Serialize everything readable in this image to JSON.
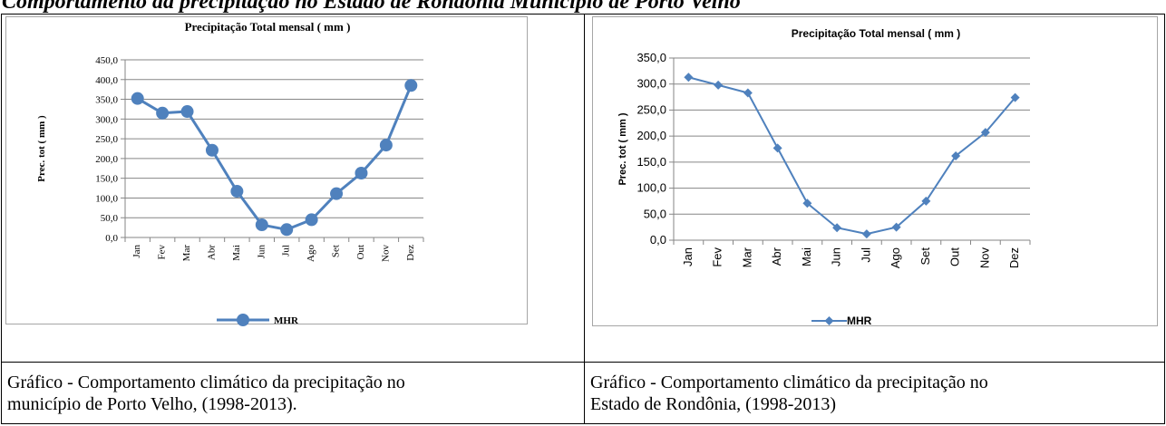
{
  "page": {
    "title": "Comportamento da precipitação no Estado de Rondônia Município de Porto Velho"
  },
  "captions": {
    "left": [
      "Gráfico - Comportamento climático da precipitação no",
      "município de Porto Velho, (1998-2013)."
    ],
    "right": [
      "Gráfico - Comportamento climático da precipitação no",
      "Estado de Rondônia, (1998-2013)"
    ]
  },
  "colors": {
    "series": "#4f81bd",
    "grid": "#868686",
    "frame": "#a6a6a6"
  },
  "chart_data": [
    {
      "type": "line",
      "title": "Precipitação Total mensal ( mm )",
      "xlabel": "",
      "ylabel": "Prec. tot ( mm )",
      "categories": [
        "Jan",
        "Fev",
        "Mar",
        "Abr",
        "Mai",
        "Jun",
        "Jul",
        "Ago",
        "Set",
        "Out",
        "Nov",
        "Dez"
      ],
      "yticks": [
        "0,0",
        "50,0",
        "100,0",
        "150,0",
        "200,0",
        "250,0",
        "300,0",
        "350,0",
        "400,0",
        "450,0"
      ],
      "ylim": [
        0,
        450
      ],
      "grid": true,
      "legend": "bottom",
      "marker": "circle",
      "series": [
        {
          "name": "MHR",
          "values": [
            352,
            315,
            319,
            221,
            117,
            32,
            20,
            45,
            111,
            163,
            234,
            385
          ]
        }
      ]
    },
    {
      "type": "line",
      "title": "Precipitação Total mensal ( mm )",
      "xlabel": "",
      "ylabel": "Prec. tot ( mm )",
      "categories": [
        "Jan",
        "Fev",
        "Mar",
        "Abr",
        "Mai",
        "Jun",
        "Jul",
        "Ago",
        "Set",
        "Out",
        "Nov",
        "Dez"
      ],
      "yticks": [
        "0,0",
        "50,0",
        "100,0",
        "150,0",
        "200,0",
        "250,0",
        "300,0",
        "350,0"
      ],
      "ylim": [
        0,
        350
      ],
      "grid": true,
      "legend": "bottom",
      "marker": "diamond",
      "series": [
        {
          "name": "MHR",
          "values": [
            313,
            298,
            283,
            177,
            71,
            24,
            12,
            25,
            75,
            162,
            207,
            274
          ]
        }
      ]
    }
  ]
}
